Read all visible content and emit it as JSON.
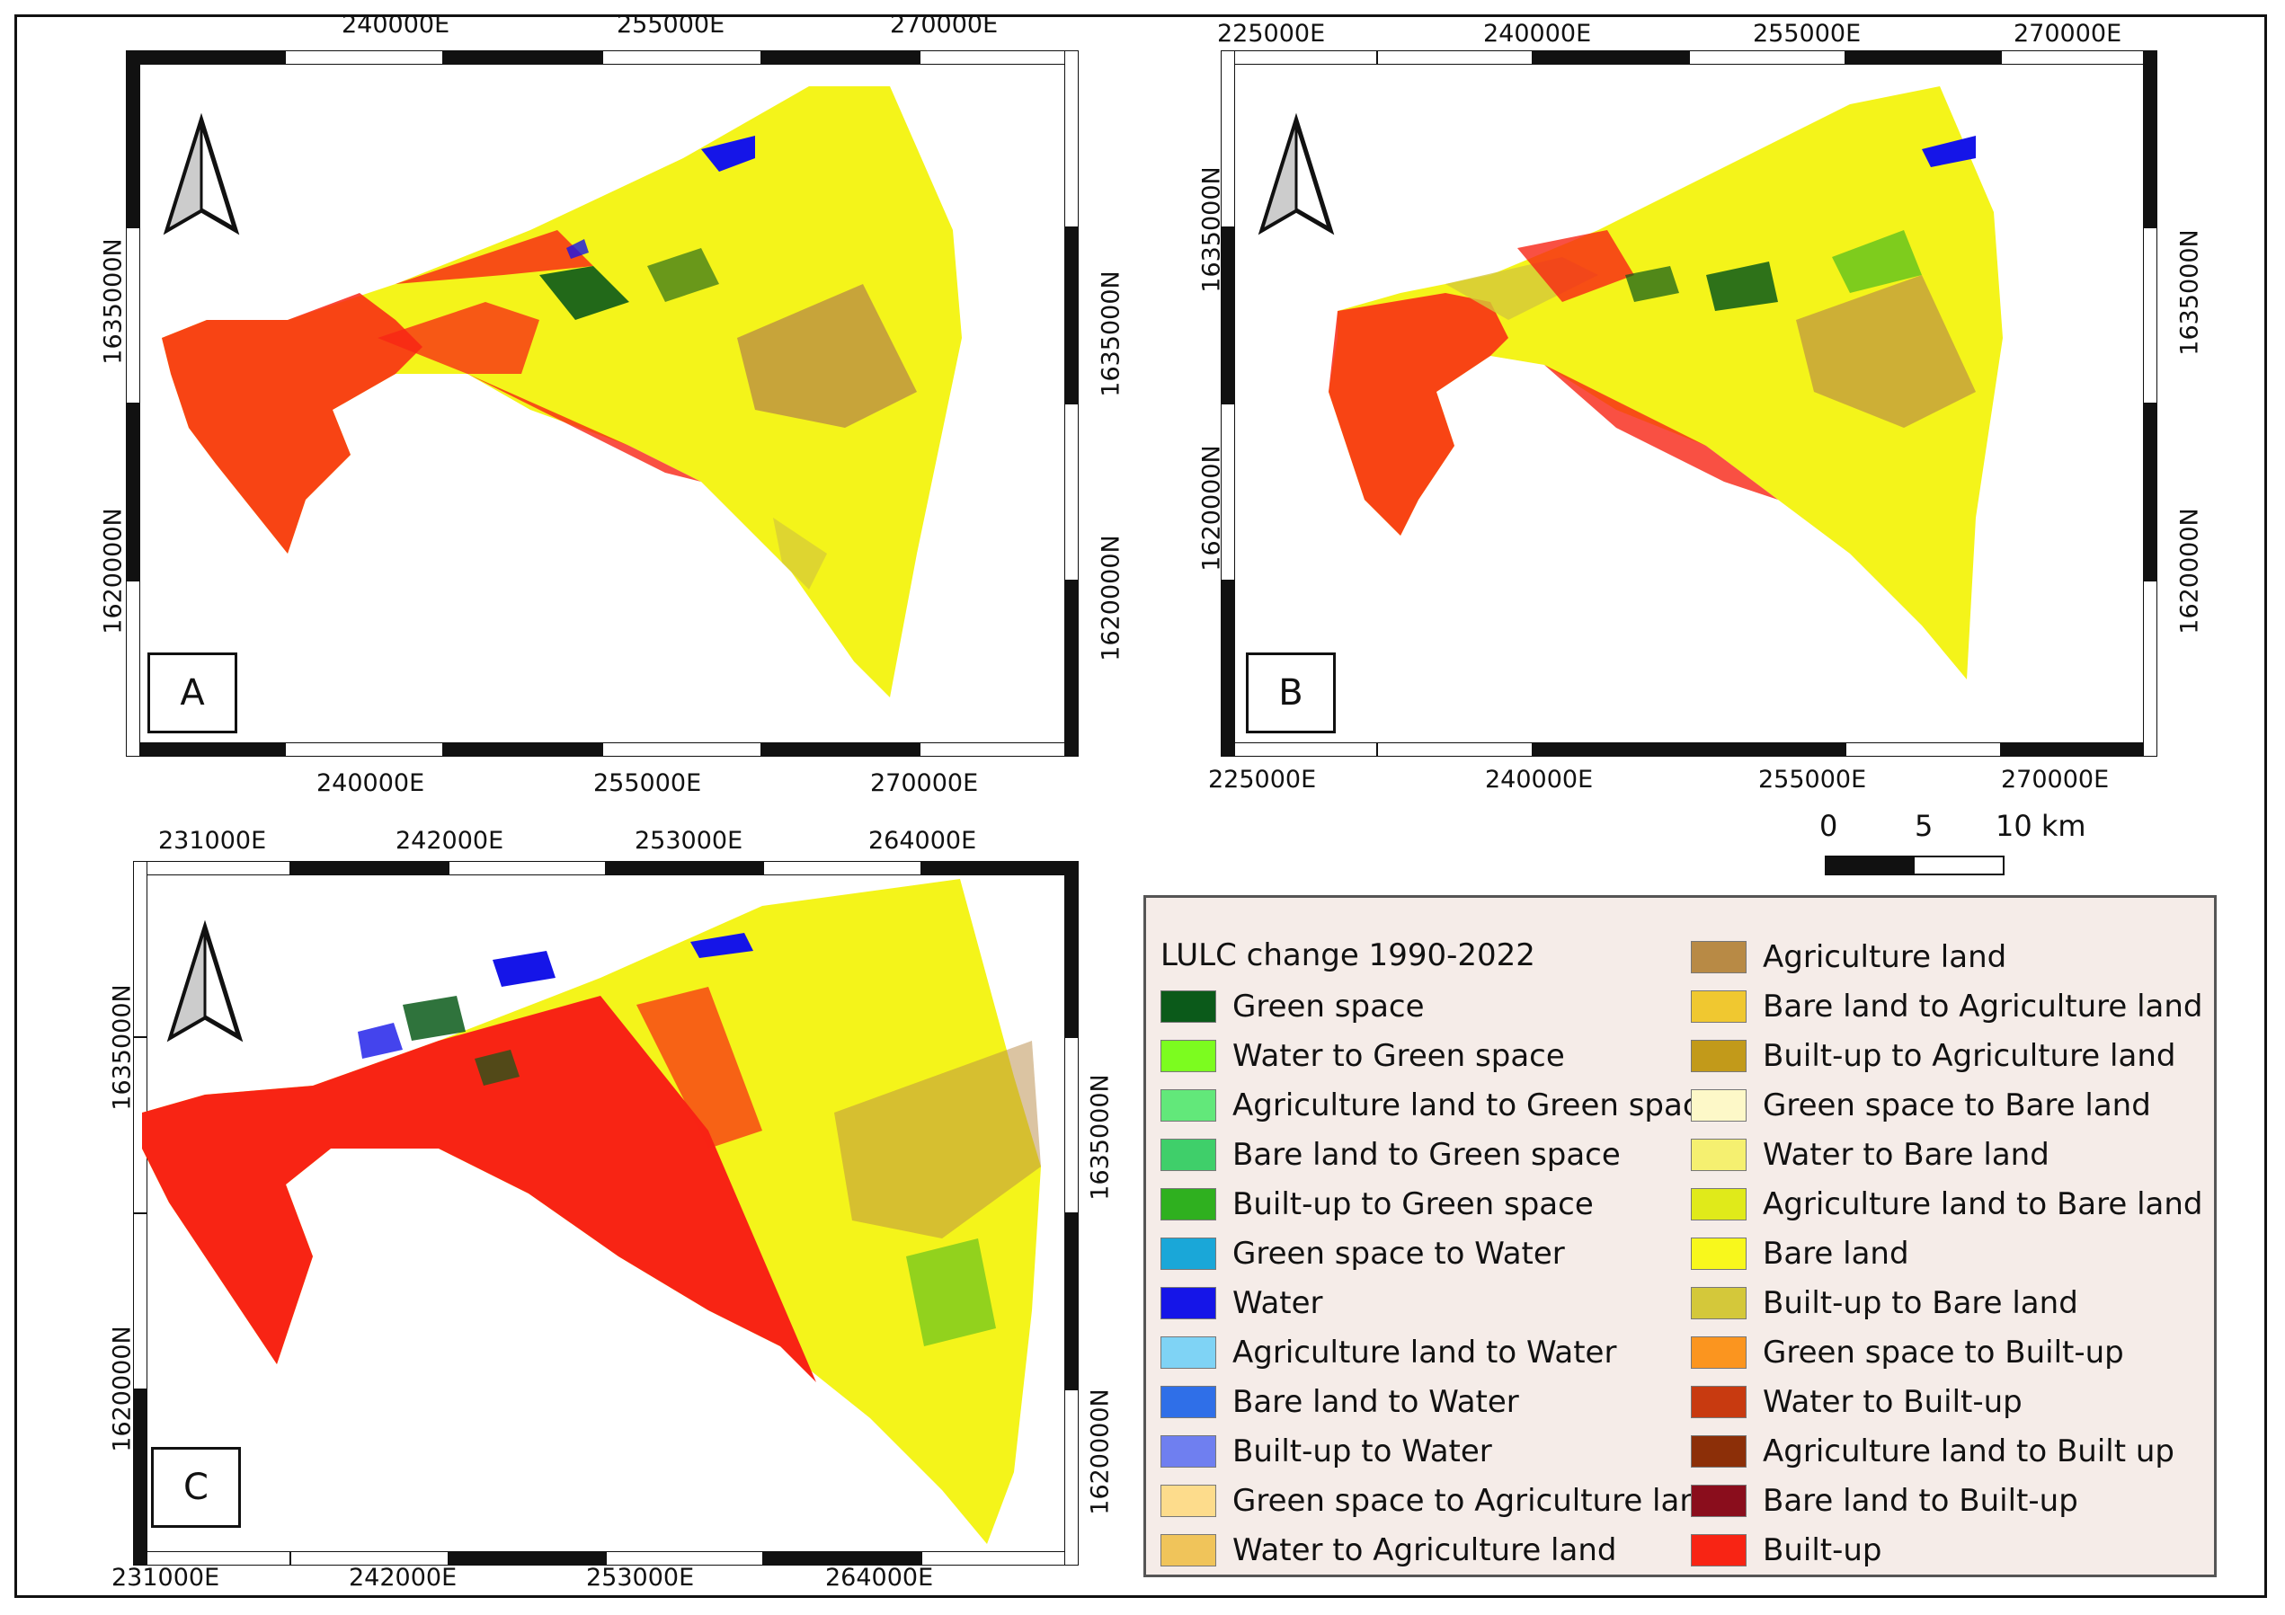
{
  "figure": {
    "panels": [
      {
        "id": "A",
        "label": "A",
        "top_ticks": [
          "240000E",
          "255000E",
          "270000E"
        ],
        "bottom_ticks": [
          "240000E",
          "255000E",
          "270000E"
        ],
        "left_ticks": [
          "1635000N",
          "1620000N"
        ],
        "right_ticks": [
          "1635000N",
          "1620000N"
        ]
      },
      {
        "id": "B",
        "label": "B",
        "top_ticks": [
          "225000E",
          "240000E",
          "255000E",
          "270000E"
        ],
        "bottom_ticks": [
          "225000E",
          "240000E",
          "255000E",
          "270000E"
        ],
        "left_ticks": [
          "1635000N",
          "1620000N"
        ],
        "right_ticks": [
          "1635000N",
          "1620000N"
        ]
      },
      {
        "id": "C",
        "label": "C",
        "top_ticks": [
          "231000E",
          "242000E",
          "253000E",
          "264000E"
        ],
        "bottom_ticks": [
          "231000E",
          "242000E",
          "253000E",
          "264000E"
        ],
        "left_ticks": [
          "1635000N",
          "1620000N"
        ],
        "right_ticks": [
          "1635000N",
          "1620000N"
        ]
      }
    ],
    "scalebar": {
      "labels": [
        "0",
        "5",
        "10 km"
      ]
    },
    "legend": {
      "title": "LULC change 1990-2022",
      "items": [
        {
          "label": "Green space",
          "color": "#0b5a1a"
        },
        {
          "label": "Water to Green space",
          "color": "#7cfc1f"
        },
        {
          "label": "Agriculture land to Green space",
          "color": "#62e87a"
        },
        {
          "label": "Bare land to Green space",
          "color": "#3fcf6a"
        },
        {
          "label": "Built-up to Green space",
          "color": "#2fb01f"
        },
        {
          "label": "Green space to Water",
          "color": "#1aa7d8"
        },
        {
          "label": "Water",
          "color": "#1515e8"
        },
        {
          "label": "Agriculture land to Water",
          "color": "#7fd3f5"
        },
        {
          "label": "Bare land to Water",
          "color": "#2f6fe8"
        },
        {
          "label": "Built-up to Water",
          "color": "#6f7ff0"
        },
        {
          "label": "Green space to Agriculture land",
          "color": "#fddc8c"
        },
        {
          "label": "Water to Agriculture land",
          "color": "#f0c45a"
        },
        {
          "label": "Agriculture land",
          "color": "#b88a45"
        },
        {
          "label": "Bare land to Agriculture land",
          "color": "#f0c830"
        },
        {
          "label": "Built-up to Agriculture land",
          "color": "#c29a1a"
        },
        {
          "label": "Green space to Bare land",
          "color": "#fdf8c8"
        },
        {
          "label": "Water to Bare land",
          "color": "#f5f070"
        },
        {
          "label": "Agriculture land to Bare land",
          "color": "#e0ea1a"
        },
        {
          "label": "Bare land",
          "color": "#f8f81c"
        },
        {
          "label": "Built-up to Bare land",
          "color": "#d4c83a"
        },
        {
          "label": "Green space to Built-up",
          "color": "#fb951f"
        },
        {
          "label": "Water to Built-up",
          "color": "#c83a10"
        },
        {
          "label": "Agriculture land to Built up",
          "color": "#8c2f08"
        },
        {
          "label": "Bare land to Built-up",
          "color": "#8a0d1c"
        },
        {
          "label": "Built-up",
          "color": "#f82414"
        }
      ]
    }
  }
}
